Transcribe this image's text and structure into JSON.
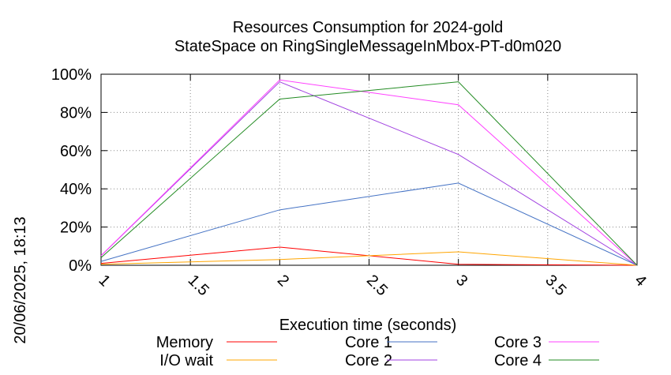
{
  "chart_data": {
    "type": "line",
    "title": "Resources Consumption for 2024-gold",
    "subtitle": "StateSpace on RingSingleMessageInMbox-PT-d0m020",
    "xlabel": "Execution time (seconds)",
    "ylabel": "",
    "side_label": "20/06/2025, 18:13",
    "xlim": [
      1,
      4
    ],
    "ylim": [
      0,
      100
    ],
    "x_ticks": [
      1,
      1.5,
      2,
      2.5,
      3,
      3.5,
      4
    ],
    "x_tick_labels": [
      "1",
      "1.5",
      "2",
      "2.5",
      "3",
      "3.5",
      "4"
    ],
    "y_ticks": [
      0,
      20,
      40,
      60,
      80,
      100
    ],
    "y_tick_labels": [
      "0%",
      "20%",
      "40%",
      "60%",
      "80%",
      "100%"
    ],
    "grid": true,
    "legend_position": "bottom",
    "x": [
      1,
      2,
      3,
      4
    ],
    "series": [
      {
        "name": "Memory",
        "color": "#ff0000",
        "values": [
          1,
          9.5,
          0.5,
          0
        ]
      },
      {
        "name": "I/O wait",
        "color": "#ffa500",
        "values": [
          0.5,
          3,
          7,
          0
        ]
      },
      {
        "name": "Core 1",
        "color": "#4472c4",
        "values": [
          2,
          29,
          43,
          0
        ]
      },
      {
        "name": "Core 2",
        "color": "#a040e0",
        "values": [
          5,
          96,
          58,
          0
        ]
      },
      {
        "name": "Core 3",
        "color": "#ff40ff",
        "values": [
          5,
          97,
          84,
          0
        ]
      },
      {
        "name": "Core 4",
        "color": "#228b22",
        "values": [
          4,
          87,
          96,
          0
        ]
      }
    ]
  }
}
